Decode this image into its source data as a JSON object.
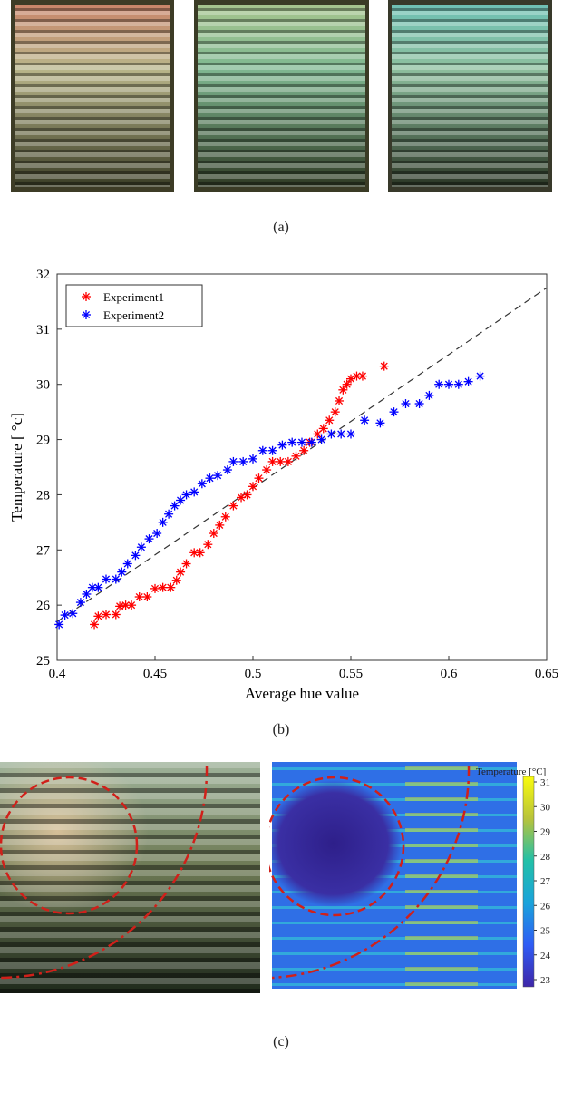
{
  "panel_a": {
    "caption": "(a)",
    "photos": [
      {
        "tint_top": "#d9a27a",
        "tint_mid": "#c2c49a",
        "stripe": "#e6e0c0"
      },
      {
        "tint_top": "#b9d8a4",
        "tint_mid": "#8fc7a8",
        "stripe": "#d2ebc9"
      },
      {
        "tint_top": "#8ed1c6",
        "tint_mid": "#9fcfb4",
        "stripe": "#d4ecde"
      }
    ]
  },
  "panel_b": {
    "caption": "(b)",
    "xlabel": "Average hue value",
    "ylabel": "Temperature [ °c]",
    "chart_data": {
      "type": "scatter",
      "xlim": [
        0.4,
        0.65
      ],
      "ylim": [
        25,
        32
      ],
      "xticks": [
        "0.4",
        "0.45",
        "0.5",
        "0.55",
        "0.6",
        "0.65"
      ],
      "yticks": [
        "25",
        "26",
        "27",
        "28",
        "29",
        "30",
        "31",
        "32"
      ],
      "legend_position": "top-left",
      "series": [
        {
          "name": "Experiment1",
          "color": "#ff0000",
          "points": [
            [
              0.419,
              25.65
            ],
            [
              0.421,
              25.8
            ],
            [
              0.425,
              25.83
            ],
            [
              0.43,
              25.83
            ],
            [
              0.432,
              25.98
            ],
            [
              0.435,
              26.0
            ],
            [
              0.438,
              26.0
            ],
            [
              0.442,
              26.15
            ],
            [
              0.446,
              26.15
            ],
            [
              0.45,
              26.3
            ],
            [
              0.454,
              26.32
            ],
            [
              0.458,
              26.32
            ],
            [
              0.461,
              26.45
            ],
            [
              0.463,
              26.6
            ],
            [
              0.466,
              26.75
            ],
            [
              0.47,
              26.95
            ],
            [
              0.473,
              26.95
            ],
            [
              0.477,
              27.1
            ],
            [
              0.48,
              27.3
            ],
            [
              0.483,
              27.45
            ],
            [
              0.486,
              27.6
            ],
            [
              0.49,
              27.8
            ],
            [
              0.494,
              27.95
            ],
            [
              0.497,
              28.0
            ],
            [
              0.5,
              28.15
            ],
            [
              0.503,
              28.3
            ],
            [
              0.507,
              28.45
            ],
            [
              0.51,
              28.6
            ],
            [
              0.514,
              28.6
            ],
            [
              0.518,
              28.6
            ],
            [
              0.522,
              28.7
            ],
            [
              0.526,
              28.8
            ],
            [
              0.529,
              28.95
            ],
            [
              0.533,
              29.1
            ],
            [
              0.536,
              29.2
            ],
            [
              0.539,
              29.35
            ],
            [
              0.542,
              29.5
            ],
            [
              0.544,
              29.7
            ],
            [
              0.546,
              29.9
            ],
            [
              0.548,
              30.0
            ],
            [
              0.55,
              30.1
            ],
            [
              0.553,
              30.15
            ],
            [
              0.556,
              30.15
            ],
            [
              0.567,
              30.33
            ]
          ]
        },
        {
          "name": "Experiment2",
          "color": "#0000ff",
          "points": [
            [
              0.401,
              25.65
            ],
            [
              0.404,
              25.82
            ],
            [
              0.408,
              25.85
            ],
            [
              0.412,
              26.05
            ],
            [
              0.415,
              26.2
            ],
            [
              0.418,
              26.32
            ],
            [
              0.421,
              26.32
            ],
            [
              0.425,
              26.47
            ],
            [
              0.43,
              26.47
            ],
            [
              0.433,
              26.6
            ],
            [
              0.436,
              26.75
            ],
            [
              0.44,
              26.9
            ],
            [
              0.443,
              27.05
            ],
            [
              0.447,
              27.2
            ],
            [
              0.451,
              27.3
            ],
            [
              0.454,
              27.5
            ],
            [
              0.457,
              27.65
            ],
            [
              0.46,
              27.8
            ],
            [
              0.463,
              27.9
            ],
            [
              0.466,
              28.0
            ],
            [
              0.47,
              28.05
            ],
            [
              0.474,
              28.2
            ],
            [
              0.478,
              28.3
            ],
            [
              0.482,
              28.35
            ],
            [
              0.487,
              28.45
            ],
            [
              0.49,
              28.6
            ],
            [
              0.495,
              28.6
            ],
            [
              0.5,
              28.65
            ],
            [
              0.505,
              28.8
            ],
            [
              0.51,
              28.8
            ],
            [
              0.515,
              28.9
            ],
            [
              0.52,
              28.95
            ],
            [
              0.525,
              28.95
            ],
            [
              0.53,
              28.95
            ],
            [
              0.535,
              29.0
            ],
            [
              0.54,
              29.1
            ],
            [
              0.545,
              29.1
            ],
            [
              0.55,
              29.1
            ],
            [
              0.557,
              29.35
            ],
            [
              0.565,
              29.3
            ],
            [
              0.572,
              29.5
            ],
            [
              0.578,
              29.65
            ],
            [
              0.585,
              29.65
            ],
            [
              0.59,
              29.8
            ],
            [
              0.595,
              30.0
            ],
            [
              0.6,
              30.0
            ],
            [
              0.605,
              30.0
            ],
            [
              0.61,
              30.05
            ],
            [
              0.616,
              30.15
            ]
          ]
        }
      ],
      "fit_line": {
        "x": [
          0.4,
          0.65
        ],
        "y": [
          25.7,
          31.75
        ],
        "style": "dashed",
        "color": "#333333"
      }
    }
  },
  "panel_c": {
    "caption": "(c)",
    "colorbar_title": "Temperature [°C]",
    "colorbar_ticks": [
      "31",
      "30",
      "29",
      "28",
      "27",
      "26",
      "25",
      "24",
      "23"
    ]
  }
}
